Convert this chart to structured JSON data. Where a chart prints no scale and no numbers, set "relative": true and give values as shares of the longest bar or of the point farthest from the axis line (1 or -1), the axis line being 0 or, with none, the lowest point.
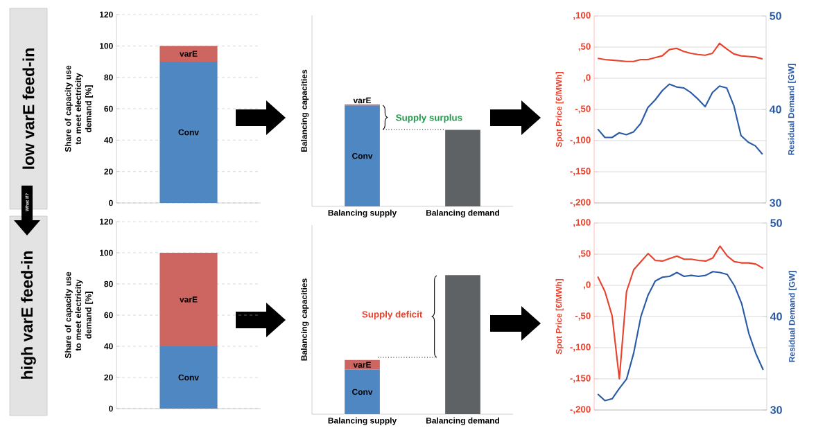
{
  "chart_data": [
    {
      "type": "bar",
      "ylabel": "Share of capacity use to meet electricity demand [%]",
      "annotations": [
        "low varE feed-in",
        "What if?"
      ],
      "categories": [
        null
      ],
      "stacked": true,
      "series": [
        {
          "name": "Conv",
          "color": "#4f87c2",
          "values": [
            90
          ]
        },
        {
          "name": "varE",
          "color": "#cd6660",
          "values": [
            10
          ]
        }
      ],
      "ylim": [
        0,
        120
      ],
      "yticks": [
        0,
        20,
        40,
        60,
        80,
        100,
        120
      ],
      "grid": "y"
    },
    {
      "type": "bar",
      "relative": true,
      "ylabel": "Balancing capacities",
      "annotations": [
        "Supply surplus"
      ],
      "categories": [
        "Balancing supply",
        "Balancing demand"
      ],
      "stacked": true,
      "series": [
        {
          "name": "Conv",
          "color": "#4f87c2",
          "values": [
            0.99,
            null
          ]
        },
        {
          "name": "varE",
          "color": "#cd6660",
          "values": [
            0.01,
            null
          ]
        },
        {
          "color": "#5f6264",
          "values": [
            null,
            0.75
          ]
        }
      ]
    },
    {
      "type": "line",
      "ylabel": "Spot Price [€/MWh]",
      "y2label": "Residual Demand [GW]",
      "categories": [
        null,
        null,
        null,
        null,
        null,
        null,
        null,
        null,
        null,
        null,
        null,
        null,
        null,
        null,
        null,
        null,
        null,
        null,
        null,
        null,
        null,
        null,
        null,
        null
      ],
      "series": [
        {
          "color": "#e8412c",
          "values": [
            32,
            30,
            29,
            28,
            27,
            27,
            30,
            30,
            33,
            36,
            46,
            48,
            43,
            40,
            38,
            37,
            40,
            56,
            47,
            39,
            36,
            35,
            34,
            31
          ]
        },
        {
          "color": "#2b5aa5",
          "axis": "y2",
          "values": [
            37.9,
            37.0,
            37.0,
            37.5,
            37.3,
            37.6,
            38.5,
            40.2,
            41.0,
            42.0,
            42.7,
            42.4,
            42.3,
            41.8,
            41.1,
            40.3,
            41.8,
            42.5,
            42.3,
            40.4,
            37.2,
            36.5,
            36.1,
            35.2
          ]
        }
      ],
      "ylim": [
        -200,
        100
      ],
      "yticks": [
        {
          "value": -200,
          "label": "-,200"
        },
        {
          "value": -150,
          "label": "-,150"
        },
        {
          "value": -100,
          "label": "-,100"
        },
        {
          "value": -50,
          "label": "-,50"
        },
        {
          "value": 0,
          "label": ",0"
        },
        {
          "value": 50,
          "label": ",50"
        },
        {
          "value": 100,
          "label": ",100"
        }
      ],
      "y2lim": [
        30,
        50
      ],
      "y2ticks": [
        30,
        40,
        50
      ],
      "grid": "y"
    },
    {
      "type": "bar",
      "ylabel": "Share of capacity use to meet electricity demand [%]",
      "annotations": [
        "high varE feed-in"
      ],
      "categories": [
        null
      ],
      "stacked": true,
      "series": [
        {
          "name": "Conv",
          "color": "#4f87c2",
          "values": [
            40
          ]
        },
        {
          "name": "varE",
          "color": "#cd6660",
          "values": [
            60
          ]
        }
      ],
      "ylim": [
        0,
        120
      ],
      "yticks": [
        0,
        20,
        40,
        60,
        80,
        100,
        120
      ],
      "grid": "y"
    },
    {
      "type": "bar",
      "relative": true,
      "ylabel": "Balancing capacities",
      "annotations": [
        "Supply deficit"
      ],
      "categories": [
        "Balancing supply",
        "Balancing demand"
      ],
      "stacked": true,
      "series": [
        {
          "name": "Conv",
          "color": "#4f87c2",
          "values": [
            0.32,
            null
          ]
        },
        {
          "name": "varE",
          "color": "#cd6660",
          "values": [
            0.07,
            null
          ]
        },
        {
          "color": "#5f6264",
          "values": [
            null,
            1
          ]
        }
      ]
    },
    {
      "type": "line",
      "ylabel": "Spot Price [€/MWh]",
      "y2label": "Residual Demand [GW]",
      "categories": [
        null,
        null,
        null,
        null,
        null,
        null,
        null,
        null,
        null,
        null,
        null,
        null,
        null,
        null,
        null,
        null,
        null,
        null,
        null,
        null,
        null,
        null,
        null,
        null
      ],
      "series": [
        {
          "color": "#e8412c",
          "values": [
            14,
            -10,
            -49,
            -150,
            -10,
            25,
            38,
            51,
            40,
            39,
            43,
            47,
            42,
            42,
            40,
            39,
            44,
            63,
            47,
            38,
            36,
            36,
            34,
            27
          ]
        },
        {
          "color": "#2b5aa5",
          "axis": "y2",
          "values": [
            31.7,
            31.0,
            31.2,
            32.3,
            33.3,
            36.1,
            40.0,
            42.3,
            43.8,
            44.2,
            44.3,
            44.7,
            44.3,
            44.4,
            44.3,
            44.4,
            44.8,
            44.7,
            44.5,
            43.3,
            41.4,
            38.2,
            36.0,
            34.3
          ]
        }
      ],
      "ylim": [
        -200,
        100
      ],
      "yticks": [
        {
          "value": -200,
          "label": "-,200"
        },
        {
          "value": -150,
          "label": "-,150"
        },
        {
          "value": -100,
          "label": "-,100"
        },
        {
          "value": -50,
          "label": "-,50"
        },
        {
          "value": 0,
          "label": ",0"
        },
        {
          "value": 50,
          "label": ",50"
        },
        {
          "value": 100,
          "label": ",100"
        }
      ],
      "y2lim": [
        30,
        50
      ],
      "y2ticks": [
        30,
        40,
        50
      ],
      "grid": "y"
    }
  ]
}
